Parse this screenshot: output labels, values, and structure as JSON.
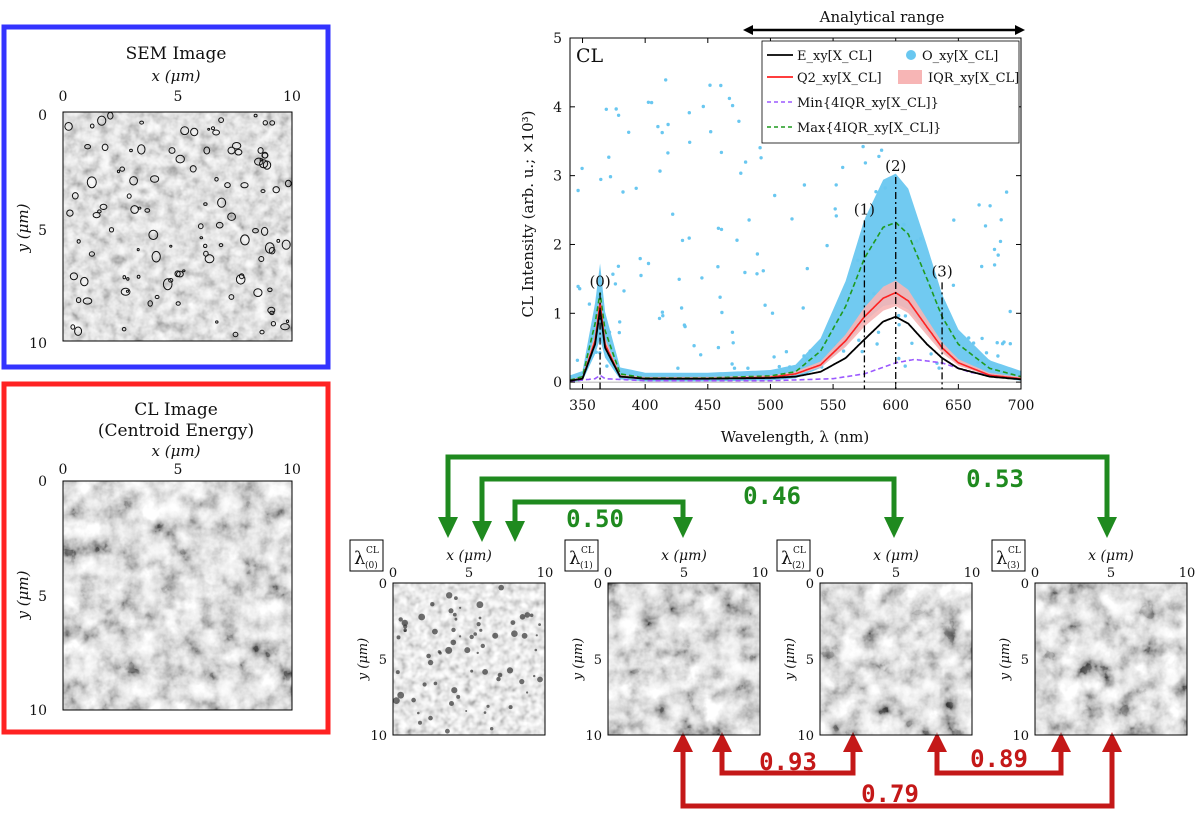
{
  "sem_panel": {
    "title": "SEM Image",
    "x_label": "x (μm)",
    "y_label": "y (μm)",
    "ticks": [
      "0",
      "5",
      "10"
    ],
    "border_color": "#3333ff"
  },
  "cl_panel": {
    "title_line1": "CL Image",
    "title_line2": "(Centroid Energy)",
    "x_label": "x (μm)",
    "y_label": "y (μm)",
    "ticks": [
      "0",
      "5",
      "10"
    ],
    "border_color": "#ff2222"
  },
  "analytical_range": "Analytical range",
  "chart_data": {
    "type": "line",
    "panel_label": "CL",
    "xlabel": "Wavelength, λ (nm)",
    "ylabel": "CL Intensity (arb. u.; ×10³)",
    "xlim": [
      340,
      700
    ],
    "ylim": [
      -0.1,
      5
    ],
    "x_ticks": [
      350,
      400,
      450,
      500,
      550,
      600,
      650,
      700
    ],
    "y_ticks": [
      0,
      1,
      2,
      3,
      4,
      5
    ],
    "analytical_range_nm": [
      480,
      700
    ],
    "peaks": [
      {
        "label": "(0)",
        "x": 364
      },
      {
        "label": "(1)",
        "x": 575
      },
      {
        "label": "(2)",
        "x": 600
      },
      {
        "label": "(3)",
        "x": 637
      }
    ],
    "legend": [
      {
        "label": "E_xy[X_CL]",
        "color": "#000000",
        "style": "solid"
      },
      {
        "label": "O_xy[X_CL]",
        "color": "#69c7f0",
        "style": "dot"
      },
      {
        "label": "Q2_xy[X_CL]",
        "color": "#ff2222",
        "style": "solid"
      },
      {
        "label": "IQR_xy[X_CL]",
        "color": "#f7b5b5",
        "style": "box"
      },
      {
        "label": "Min{4IQR_xy[X_CL]}",
        "color": "#9b59ff",
        "style": "dashed"
      },
      {
        "label": "Max{4IQR_xy[X_CL]}",
        "color": "#1f9a1f",
        "style": "dashed"
      }
    ],
    "legend_position": "top-right",
    "series": [
      {
        "name": "E_xy[X_CL]",
        "x": [
          340,
          350,
          360,
          364,
          368,
          380,
          400,
          450,
          500,
          520,
          540,
          560,
          575,
          590,
          600,
          610,
          625,
          637,
          650,
          675,
          700
        ],
        "values": [
          0.02,
          0.05,
          0.55,
          1.05,
          0.5,
          0.08,
          0.05,
          0.05,
          0.06,
          0.08,
          0.15,
          0.35,
          0.62,
          0.88,
          0.95,
          0.85,
          0.55,
          0.35,
          0.2,
          0.08,
          0.04
        ]
      },
      {
        "name": "Q2_xy[X_CL]",
        "x": [
          340,
          350,
          360,
          364,
          368,
          380,
          400,
          450,
          500,
          520,
          540,
          560,
          575,
          590,
          600,
          610,
          625,
          637,
          650,
          675,
          700
        ],
        "values": [
          0.02,
          0.05,
          0.6,
          1.15,
          0.55,
          0.08,
          0.05,
          0.05,
          0.07,
          0.12,
          0.25,
          0.6,
          0.95,
          1.22,
          1.3,
          1.18,
          0.8,
          0.5,
          0.28,
          0.1,
          0.05
        ]
      },
      {
        "name": "Min{4IQR_xy[X_CL]}",
        "x": [
          340,
          360,
          364,
          368,
          400,
          500,
          550,
          575,
          600,
          615,
          637,
          660,
          700
        ],
        "values": [
          0.01,
          0.05,
          0.1,
          0.05,
          0.02,
          0.02,
          0.05,
          0.12,
          0.28,
          0.33,
          0.28,
          0.14,
          0.04
        ]
      },
      {
        "name": "Max{4IQR_xy[X_CL]}",
        "x": [
          340,
          350,
          360,
          364,
          368,
          380,
          400,
          450,
          500,
          520,
          540,
          560,
          575,
          590,
          600,
          610,
          625,
          637,
          650,
          675,
          700
        ],
        "values": [
          0.03,
          0.08,
          0.85,
          1.3,
          0.75,
          0.12,
          0.06,
          0.06,
          0.09,
          0.15,
          0.45,
          1.1,
          1.8,
          2.25,
          2.32,
          2.15,
          1.5,
          0.95,
          0.55,
          0.2,
          0.08
        ]
      }
    ]
  },
  "maps": [
    {
      "label": "λ",
      "sup": "CL",
      "sub": "(0)",
      "x_label": "x (μm)",
      "y_label": "y (μm)",
      "ticks": [
        "0",
        "5",
        "10"
      ]
    },
    {
      "label": "λ",
      "sup": "CL",
      "sub": "(1)",
      "x_label": "x (μm)",
      "y_label": "y (μm)",
      "ticks": [
        "0",
        "5",
        "10"
      ]
    },
    {
      "label": "λ",
      "sup": "CL",
      "sub": "(2)",
      "x_label": "x (μm)",
      "y_label": "y (μm)",
      "ticks": [
        "0",
        "5",
        "10"
      ]
    },
    {
      "label": "λ",
      "sup": "CL",
      "sub": "(3)",
      "x_label": "x (μm)",
      "y_label": "y (μm)",
      "ticks": [
        "0",
        "5",
        "10"
      ]
    }
  ],
  "correlations": {
    "green_color": "#1f8a1f",
    "red_color": "#c41818",
    "green": [
      {
        "from": "(0)",
        "to": "(1)",
        "value": "0.50"
      },
      {
        "from": "(0)",
        "to": "(2)",
        "value": "0.46"
      },
      {
        "from": "(0)",
        "to": "(3)",
        "value": "0.53"
      }
    ],
    "red": [
      {
        "from": "(1)",
        "to": "(2)",
        "value": "0.93"
      },
      {
        "from": "(2)",
        "to": "(3)",
        "value": "0.89"
      },
      {
        "from": "(1)",
        "to": "(3)",
        "value": "0.79"
      }
    ]
  }
}
